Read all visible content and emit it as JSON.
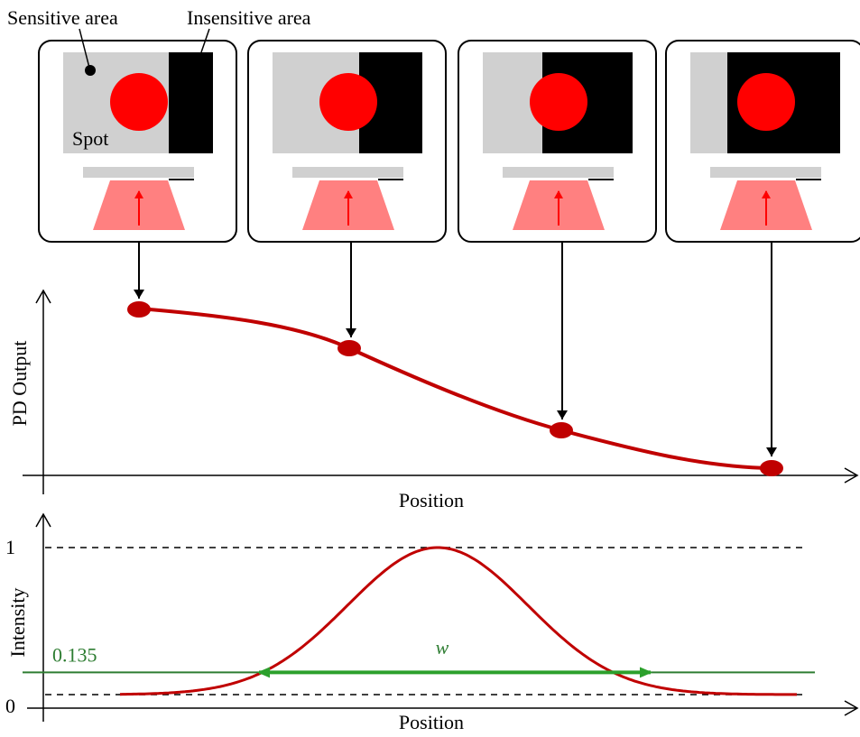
{
  "labels": {
    "sensitive": "Sensitive area",
    "insensitive": "Insensitive area",
    "spot": "Spot"
  },
  "pd_plot": {
    "y_label": "PD Output",
    "x_label": "Position"
  },
  "intensity_plot": {
    "y_label": "Intensity",
    "x_label": "Position",
    "ticks": [
      0,
      0.135,
      1
    ],
    "width_label": "w"
  }
}
